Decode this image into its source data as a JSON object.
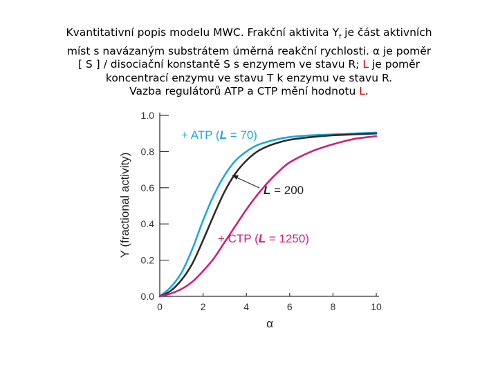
{
  "caption": {
    "l1_a": "Kvantitativní popis modelu MWC",
    "l1_b": ". Frakční aktivita Y",
    "l1_sub": "f",
    "l1_c": " je část aktivních",
    "l2_a": "míst s navázaným substrátem úměrná reakční rychlosti. ",
    "alpha": "α",
    "l2_b": " je poměr",
    "l3_a": "[ S ] / disociační konstantě S s enzymem ve stavu R; ",
    "l3_L": "L",
    "l3_b": " je poměr",
    "l4": "koncentrací enzymu ve stavu T k enzymu ve stavu R.",
    "l5_a": "Vazba regulátorů ATP a CTP mění hodnotu ",
    "l5_L": "L",
    "l5_b": "."
  },
  "chart_data": {
    "type": "line",
    "xlabel": "α",
    "ylabel": "Y (fractional activity)",
    "xlim": [
      0,
      10
    ],
    "ylim": [
      0,
      1.0
    ],
    "x_ticks": [
      "0",
      "2",
      "4",
      "6",
      "8",
      "10"
    ],
    "y_ticks": [
      "0.0",
      "0.2",
      "0.4",
      "0.6",
      "0.8",
      "1.0"
    ],
    "x": [
      0,
      0.5,
      1,
      1.5,
      2,
      2.5,
      3,
      3.5,
      4,
      4.5,
      5,
      5.5,
      6,
      7,
      8,
      9,
      10
    ],
    "series": [
      {
        "key": "atp",
        "color": "#1ca8dd",
        "values": [
          0,
          0.05,
          0.13,
          0.26,
          0.42,
          0.56,
          0.67,
          0.75,
          0.8,
          0.835,
          0.855,
          0.87,
          0.88,
          0.89,
          0.895,
          0.9,
          0.905
        ]
      },
      {
        "key": "base",
        "color": "#2b2b2b",
        "values": [
          0,
          0.03,
          0.09,
          0.18,
          0.31,
          0.45,
          0.58,
          0.68,
          0.75,
          0.8,
          0.83,
          0.85,
          0.865,
          0.88,
          0.89,
          0.895,
          0.9
        ]
      },
      {
        "key": "ctp",
        "color": "#cc1f7a",
        "values": [
          0,
          0.015,
          0.04,
          0.08,
          0.14,
          0.21,
          0.3,
          0.39,
          0.48,
          0.56,
          0.63,
          0.69,
          0.74,
          0.8,
          0.84,
          0.87,
          0.885
        ]
      }
    ],
    "annotations": {
      "atp": {
        "prefix": "+ ATP (",
        "L": "L",
        "suffix": " = 70)",
        "color": "#1ca8dd"
      },
      "base": {
        "L": "L",
        "suffix": " = 200",
        "color": "#222222"
      },
      "ctp": {
        "prefix": "+ CTP (",
        "L": "L",
        "suffix": " = 1250)",
        "color": "#cc1f7a"
      }
    }
  }
}
